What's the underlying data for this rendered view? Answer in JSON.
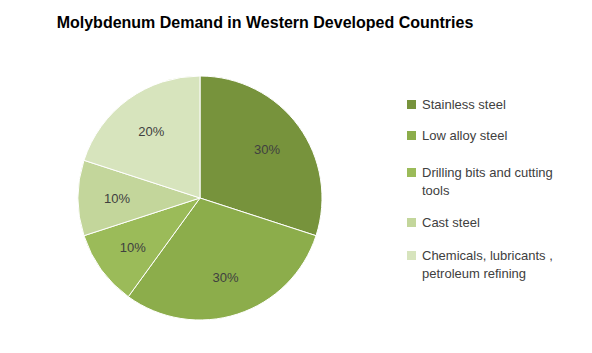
{
  "chart_data": {
    "type": "pie",
    "title": "Molybdenum Demand in Western Developed Countries",
    "categories": [
      "Stainless steel",
      "Low alloy steel",
      "Drilling bits and cutting tools",
      "Cast steel",
      "Chemicals, lubricants , petroleum refining"
    ],
    "values": [
      30,
      30,
      10,
      10,
      20
    ],
    "value_labels": [
      "30%",
      "30%",
      "10%",
      "10%",
      "20%"
    ],
    "colors": [
      "#77933c",
      "#8cad4b",
      "#9bbb59",
      "#c3d69b",
      "#d7e4bd"
    ],
    "data_labels": true,
    "legend": "right"
  }
}
